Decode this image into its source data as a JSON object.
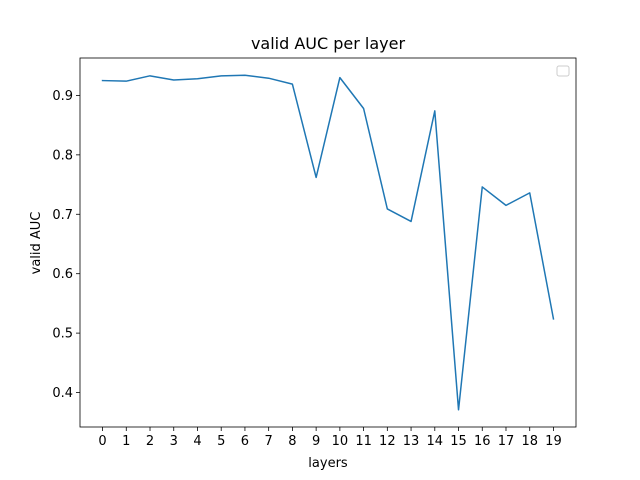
{
  "colors": {
    "line": "#1f77b4",
    "axes": "#000000",
    "background": "#ffffff",
    "legend_border": "#cccccc"
  },
  "chart_data": {
    "type": "line",
    "title": "valid AUC per layer",
    "xlabel": "layers",
    "ylabel": "valid AUC",
    "x": [
      0,
      1,
      2,
      3,
      4,
      5,
      6,
      7,
      8,
      9,
      10,
      11,
      12,
      13,
      14,
      15,
      16,
      17,
      18,
      19
    ],
    "series": [
      {
        "values": [
          0.925,
          0.924,
          0.933,
          0.926,
          0.928,
          0.933,
          0.934,
          0.929,
          0.919,
          0.762,
          0.93,
          0.878,
          0.709,
          0.688,
          0.874,
          0.371,
          0.746,
          0.715,
          0.736,
          0.524
        ]
      }
    ],
    "xlim": [
      -0.95,
      19.95
    ],
    "ylim": [
      0.342,
      0.963
    ],
    "xticks": [
      "0",
      "1",
      "2",
      "3",
      "4",
      "5",
      "6",
      "7",
      "8",
      "9",
      "10",
      "11",
      "12",
      "13",
      "14",
      "15",
      "16",
      "17",
      "18",
      "19"
    ],
    "yticks": [
      {
        "value": 0.4,
        "label": "0.4"
      },
      {
        "value": 0.5,
        "label": "0.5"
      },
      {
        "value": 0.6,
        "label": "0.6"
      },
      {
        "value": 0.7,
        "label": "0.7"
      },
      {
        "value": 0.8,
        "label": "0.8"
      },
      {
        "value": 0.9,
        "label": "0.9"
      }
    ],
    "grid": false,
    "legend": "top-right"
  }
}
